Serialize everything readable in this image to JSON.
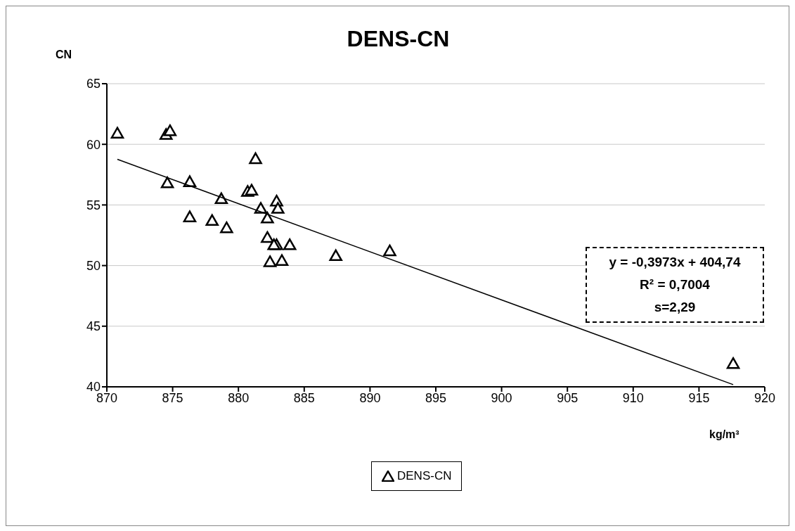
{
  "chart_data": {
    "type": "scatter",
    "title": "DENS-CN",
    "xlabel": "kg/m³",
    "ylabel": "CN",
    "xlim": [
      870,
      920
    ],
    "xticks": [
      870,
      875,
      880,
      885,
      890,
      895,
      900,
      905,
      910,
      915,
      920
    ],
    "ylim": [
      40,
      65
    ],
    "yticks": [
      40,
      45,
      50,
      55,
      60,
      65
    ],
    "grid": "y",
    "legend": "bottom",
    "annotations": [
      "y = -0,3973x + 404,74",
      "R² = 0,7004",
      "s=2,29"
    ],
    "series": [
      {
        "name": "DENS-CN",
        "color": "#000000",
        "marker": "triangle",
        "x": [
          870.8,
          874.5,
          874.8,
          874.6,
          876.3,
          876.3,
          878.0,
          878.7,
          879.1,
          880.7,
          881.0,
          881.3,
          881.7,
          882.2,
          882.9,
          883.0,
          882.2,
          882.9,
          882.7,
          883.9,
          882.4,
          883.3,
          887.4,
          891.5,
          917.6
        ],
        "values": [
          60.9,
          60.8,
          61.1,
          56.8,
          56.9,
          54.0,
          53.7,
          55.5,
          53.1,
          56.1,
          56.2,
          58.8,
          54.7,
          53.9,
          55.3,
          54.7,
          52.3,
          51.7,
          51.7,
          51.7,
          50.3,
          50.4,
          50.8,
          51.2,
          41.9
        ]
      },
      {
        "type": "line",
        "color": "#000000",
        "marker": "none",
        "x": [
          870.8,
          917.6
        ],
        "values": [
          58.76,
          40.18
        ]
      }
    ]
  }
}
